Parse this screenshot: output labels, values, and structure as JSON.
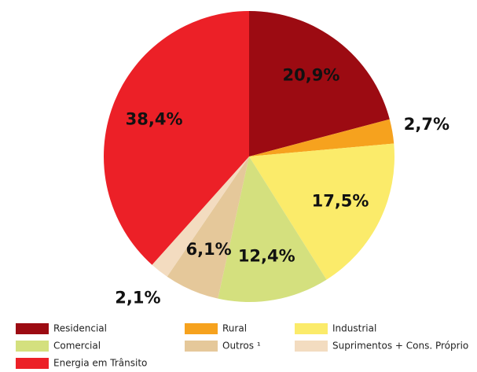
{
  "chart_data": {
    "type": "pie",
    "categories": [
      "Residencial",
      "Rural",
      "Industrial",
      "Comercial",
      "Outros ¹",
      "Suprimentos + Cons. Próprio",
      "Energia em Trânsito"
    ],
    "values": [
      20.9,
      2.7,
      17.5,
      12.4,
      6.1,
      2.1,
      38.4
    ],
    "value_labels": [
      "20,9%",
      "2,7%",
      "17,5%",
      "12,4%",
      "6,1%",
      "2,1%",
      "38,4%"
    ],
    "colors": [
      "#9c0b12",
      "#f6a21e",
      "#fbeb6a",
      "#d4e07e",
      "#e5c89a",
      "#f3dcc0",
      "#ec2027"
    ],
    "legend": "bottom"
  }
}
